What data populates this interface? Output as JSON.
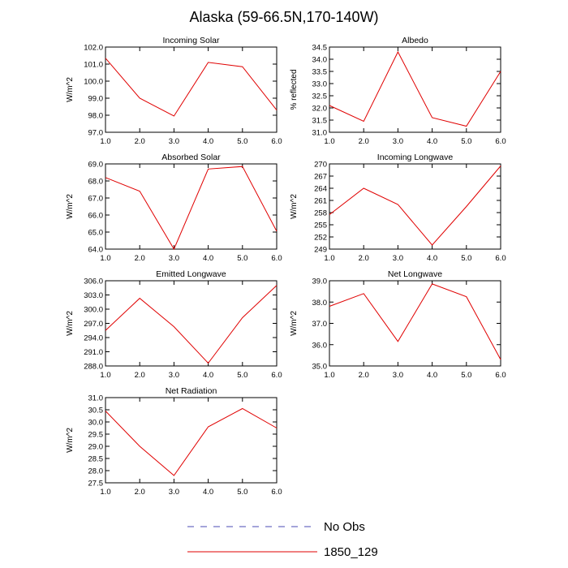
{
  "figure": {
    "title": "Alaska (59-66.5N,170-140W)"
  },
  "legend": {
    "entries": [
      {
        "label": "No Obs",
        "color": "#4b4bb4",
        "style": "dashed"
      },
      {
        "label": "1850_129",
        "color": "#e00000",
        "style": "solid"
      }
    ]
  },
  "chart_data": [
    {
      "type": "line",
      "title": "Incoming Solar",
      "ylabel": "W/m^2",
      "xlabel": "",
      "x": [
        1,
        2,
        3,
        4,
        5,
        6
      ],
      "xlim": [
        1,
        6
      ],
      "xticks": [
        "1.0",
        "2.0",
        "3.0",
        "4.0",
        "5.0",
        "6.0"
      ],
      "ylim": [
        97,
        102
      ],
      "yticks": [
        97,
        98,
        99,
        100,
        101,
        102
      ],
      "ytick_labels": [
        "97.0",
        "98.0",
        "99.0",
        "100.0",
        "101.0",
        "102.0"
      ],
      "series": [
        {
          "name": "1850_129",
          "color": "#e00000",
          "values": [
            101.35,
            99.0,
            97.95,
            101.1,
            100.85,
            98.3
          ]
        }
      ]
    },
    {
      "type": "line",
      "title": "Albedo",
      "ylabel": "% reflected",
      "xlabel": "",
      "x": [
        1,
        2,
        3,
        4,
        5,
        6
      ],
      "xlim": [
        1,
        6
      ],
      "xticks": [
        "1.0",
        "2.0",
        "3.0",
        "4.0",
        "5.0",
        "6.0"
      ],
      "ylim": [
        31,
        34.5
      ],
      "yticks": [
        31,
        31.5,
        32,
        32.5,
        33,
        33.5,
        34,
        34.5
      ],
      "ytick_labels": [
        "31.0",
        "31.5",
        "32.0",
        "32.5",
        "33.0",
        "33.5",
        "34.0",
        "34.5"
      ],
      "series": [
        {
          "name": "1850_129",
          "color": "#e00000",
          "values": [
            32.1,
            31.45,
            34.3,
            31.6,
            31.25,
            33.5
          ]
        }
      ]
    },
    {
      "type": "line",
      "title": "Absorbed Solar",
      "ylabel": "W/m^2",
      "xlabel": "",
      "x": [
        1,
        2,
        3,
        4,
        5,
        6
      ],
      "xlim": [
        1,
        6
      ],
      "xticks": [
        "1.0",
        "2.0",
        "3.0",
        "4.0",
        "5.0",
        "6.0"
      ],
      "ylim": [
        64,
        69
      ],
      "yticks": [
        64,
        65,
        66,
        67,
        68,
        69
      ],
      "ytick_labels": [
        "64.0",
        "65.0",
        "66.0",
        "67.0",
        "68.0",
        "69.0"
      ],
      "series": [
        {
          "name": "1850_129",
          "color": "#e00000",
          "values": [
            68.2,
            67.4,
            64.0,
            68.7,
            68.85,
            65.05
          ]
        }
      ]
    },
    {
      "type": "line",
      "title": "Incoming Longwave",
      "ylabel": "W/m^2",
      "xlabel": "",
      "x": [
        1,
        2,
        3,
        4,
        5,
        6
      ],
      "xlim": [
        1,
        6
      ],
      "xticks": [
        "1.0",
        "2.0",
        "3.0",
        "4.0",
        "5.0",
        "6.0"
      ],
      "ylim": [
        249,
        270
      ],
      "yticks": [
        249,
        252,
        255,
        258,
        261,
        264,
        267,
        270
      ],
      "ytick_labels": [
        "249",
        "252",
        "255",
        "258",
        "261",
        "264",
        "267",
        "270"
      ],
      "series": [
        {
          "name": "1850_129",
          "color": "#e00000",
          "values": [
            257.5,
            264.0,
            260.0,
            250.0,
            259.5,
            269.5
          ]
        }
      ]
    },
    {
      "type": "line",
      "title": "Emitted Longwave",
      "ylabel": "W/m^2",
      "xlabel": "",
      "x": [
        1,
        2,
        3,
        4,
        5,
        6
      ],
      "xlim": [
        1,
        6
      ],
      "xticks": [
        "1.0",
        "2.0",
        "3.0",
        "4.0",
        "5.0",
        "6.0"
      ],
      "ylim": [
        288,
        306
      ],
      "yticks": [
        288,
        291,
        294,
        297,
        300,
        303,
        306
      ],
      "ytick_labels": [
        "288.0",
        "291.0",
        "294.0",
        "297.0",
        "300.0",
        "303.0",
        "306.0"
      ],
      "series": [
        {
          "name": "1850_129",
          "color": "#e00000",
          "values": [
            295.5,
            302.3,
            296.3,
            288.6,
            298.2,
            305.0
          ]
        }
      ]
    },
    {
      "type": "line",
      "title": "Net Longwave",
      "ylabel": "W/m^2",
      "xlabel": "",
      "x": [
        1,
        2,
        3,
        4,
        5,
        6
      ],
      "xlim": [
        1,
        6
      ],
      "xticks": [
        "1.0",
        "2.0",
        "3.0",
        "4.0",
        "5.0",
        "6.0"
      ],
      "ylim": [
        35,
        39
      ],
      "yticks": [
        35,
        36,
        37,
        38,
        39
      ],
      "ytick_labels": [
        "35.0",
        "36.0",
        "37.0",
        "38.0",
        "39.0"
      ],
      "series": [
        {
          "name": "1850_129",
          "color": "#e00000",
          "values": [
            37.8,
            38.4,
            36.15,
            38.85,
            38.25,
            35.3
          ]
        }
      ]
    },
    {
      "type": "line",
      "title": "Net Radiation",
      "ylabel": "W/m^2",
      "xlabel": "",
      "x": [
        1,
        2,
        3,
        4,
        5,
        6
      ],
      "xlim": [
        1,
        6
      ],
      "xticks": [
        "1.0",
        "2.0",
        "3.0",
        "4.0",
        "5.0",
        "6.0"
      ],
      "ylim": [
        27.5,
        31
      ],
      "yticks": [
        27.5,
        28,
        28.5,
        29,
        29.5,
        30,
        30.5,
        31
      ],
      "ytick_labels": [
        "27.5",
        "28.0",
        "28.5",
        "29.0",
        "29.5",
        "30.0",
        "30.5",
        "31.0"
      ],
      "series": [
        {
          "name": "1850_129",
          "color": "#e00000",
          "values": [
            30.45,
            29.0,
            27.8,
            29.8,
            30.55,
            29.75
          ]
        }
      ]
    }
  ]
}
